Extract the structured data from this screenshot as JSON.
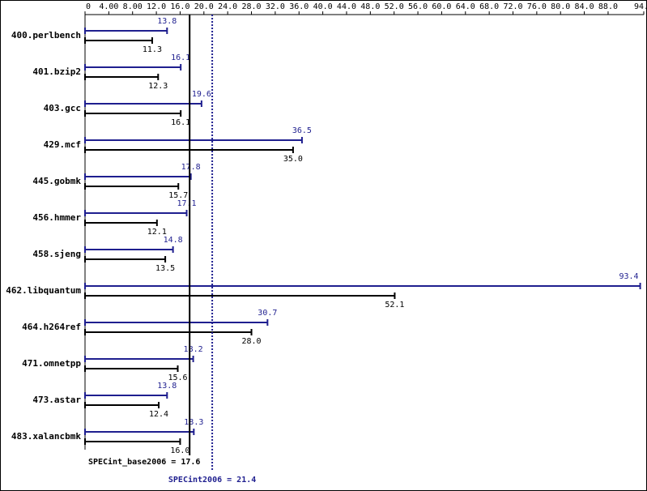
{
  "chart_data": {
    "type": "bar",
    "orientation": "horizontal",
    "categories": [
      "400.perlbench",
      "401.bzip2",
      "403.gcc",
      "429.mcf",
      "445.gobmk",
      "456.hmmer",
      "458.sjeng",
      "462.libquantum",
      "464.h264ref",
      "471.omnetpp",
      "473.astar",
      "483.xalancbmk"
    ],
    "series": [
      {
        "color": "#1f1f8f",
        "values": [
          13.8,
          16.1,
          19.6,
          36.5,
          17.8,
          17.1,
          14.8,
          93.4,
          30.7,
          18.2,
          13.8,
          18.3
        ],
        "value_labels": [
          "13.8",
          "16.1",
          "19.6",
          "36.5",
          "17.8",
          "17.1",
          "14.8",
          "93.4",
          "30.7",
          "18.2",
          "13.8",
          "18.3"
        ]
      },
      {
        "color": "#000000",
        "values": [
          11.3,
          12.3,
          16.1,
          35.0,
          15.7,
          12.1,
          13.5,
          52.1,
          28.0,
          15.6,
          12.4,
          16.0
        ],
        "value_labels": [
          "11.3",
          "12.3",
          "16.1",
          "35.0",
          "15.7",
          "12.1",
          "13.5",
          "52.1",
          "28.0",
          "15.6",
          "12.4",
          "16.0"
        ]
      }
    ],
    "xlim": [
      0,
      94
    ],
    "xticks": [
      0,
      {
        "value": 4,
        "label": "4.00"
      },
      {
        "value": 8,
        "label": "8.00"
      },
      {
        "value": 12,
        "label": "12.0"
      },
      {
        "value": 16,
        "label": "16.0"
      },
      {
        "value": 20,
        "label": "20.0"
      },
      {
        "value": 24,
        "label": "24.0"
      },
      {
        "value": 28,
        "label": "28.0"
      },
      {
        "value": 32,
        "label": "32.0"
      },
      {
        "value": 36,
        "label": "36.0"
      },
      {
        "value": 40,
        "label": "40.0"
      },
      {
        "value": 44,
        "label": "44.0"
      },
      {
        "value": 48,
        "label": "48.0"
      },
      {
        "value": 52,
        "label": "52.0"
      },
      {
        "value": 56,
        "label": "56.0"
      },
      {
        "value": 60,
        "label": "60.0"
      },
      {
        "value": 64,
        "label": "64.0"
      },
      {
        "value": 68,
        "label": "68.0"
      },
      {
        "value": 72,
        "label": "72.0"
      },
      {
        "value": 76,
        "label": "76.0"
      },
      {
        "value": 80,
        "label": "80.0"
      },
      {
        "value": 84,
        "label": "84.0"
      },
      {
        "value": 88,
        "label": "88.0"
      },
      {
        "value": 94,
        "label": "94.0"
      }
    ],
    "reference_lines": [
      {
        "value": 17.6,
        "label": "SPECint_base2006 = 17.6",
        "color": "#000000",
        "style": "solid"
      },
      {
        "value": 21.4,
        "label": "SPECint2006 = 21.4",
        "color": "#1f1f8f",
        "style": "dotted"
      }
    ]
  }
}
